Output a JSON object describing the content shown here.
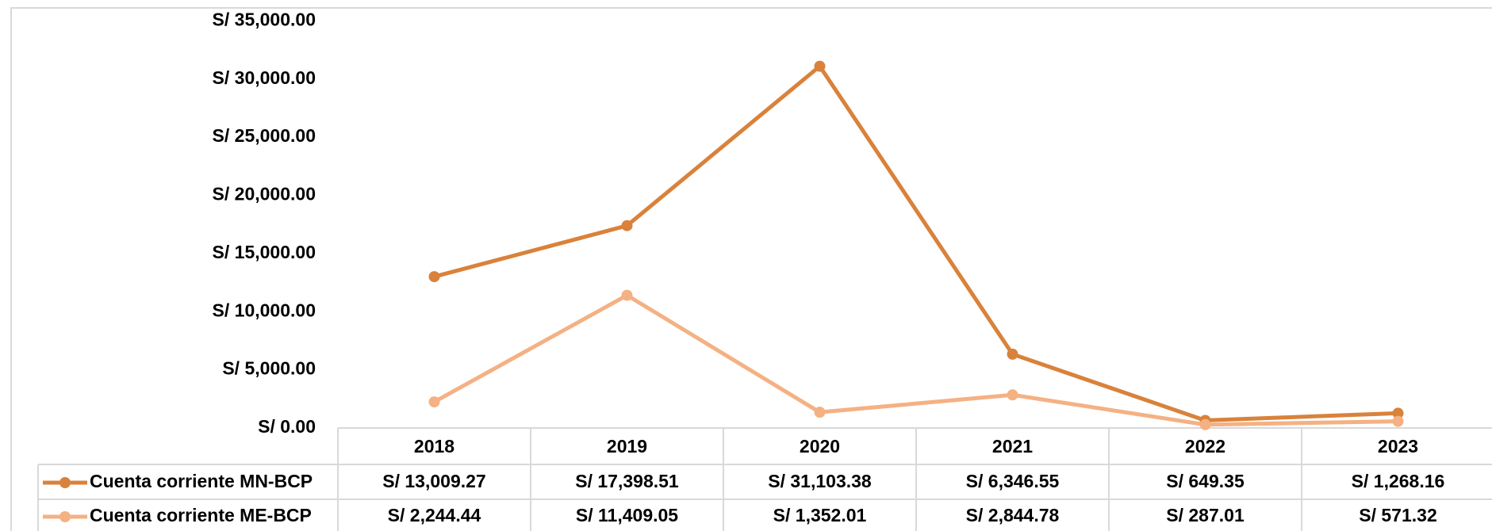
{
  "chart_data": {
    "type": "line",
    "categories": [
      "2018",
      "2019",
      "2020",
      "2021",
      "2022",
      "2023"
    ],
    "series": [
      {
        "name": "Cuenta corriente MN-BCP",
        "color": "#d9823b",
        "values": [
          13009.27,
          17398.51,
          31103.38,
          6346.55,
          649.35,
          1268.16
        ],
        "value_labels": [
          "S/ 13,009.27",
          "S/ 17,398.51",
          "S/ 31,103.38",
          "S/ 6,346.55",
          "S/ 649.35",
          "S/ 1,268.16"
        ]
      },
      {
        "name": "Cuenta corriente ME-BCP",
        "color": "#f4b183",
        "values": [
          2244.44,
          11409.05,
          1352.01,
          2844.78,
          287.01,
          571.32
        ],
        "value_labels": [
          "S/ 2,244.44",
          "S/ 11,409.05",
          "S/ 1,352.01",
          "S/ 2,844.78",
          "S/ 287.01",
          "S/ 571.32"
        ]
      }
    ],
    "ylim": [
      0,
      35000
    ],
    "yticks": [
      {
        "value": 0,
        "label": "S/ 0.00"
      },
      {
        "value": 5000,
        "label": "S/ 5,000.00"
      },
      {
        "value": 10000,
        "label": "S/ 10,000.00"
      },
      {
        "value": 15000,
        "label": "S/ 15,000.00"
      },
      {
        "value": 20000,
        "label": "S/ 20,000.00"
      },
      {
        "value": 25000,
        "label": "S/ 25,000.00"
      },
      {
        "value": 30000,
        "label": "S/ 30,000.00"
      },
      {
        "value": 35000,
        "label": "S/ 35,000.00"
      }
    ],
    "grid": false
  }
}
